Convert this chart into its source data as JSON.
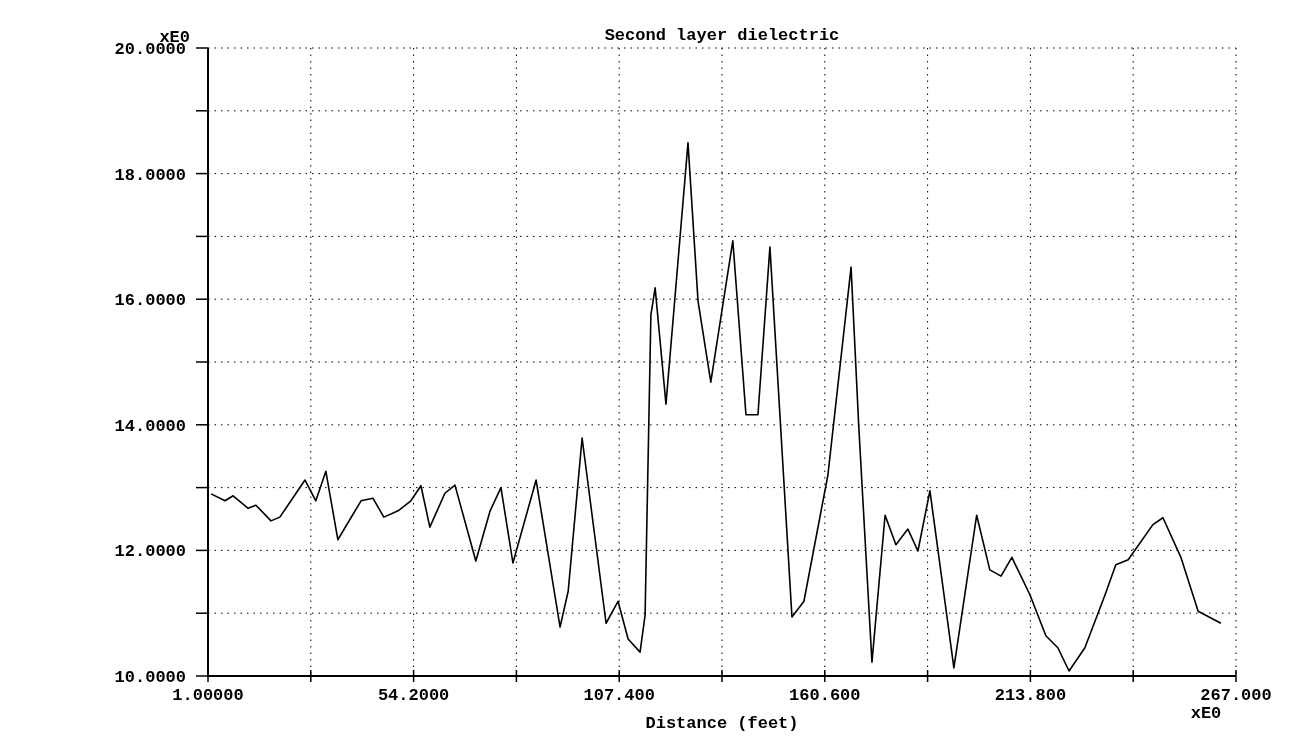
{
  "chart_data": {
    "type": "line",
    "title": "Second layer dielectric",
    "xlabel": "Distance (feet)",
    "annotations": [
      "xE0",
      "xE0"
    ],
    "x": [
      1.8,
      5.4,
      7.5,
      11.4,
      13.4,
      17.3,
      19.6,
      26.1,
      28.9,
      31.5,
      34.6,
      40.6,
      43.7,
      46.5,
      50.2,
      53.5,
      56.1,
      58.4,
      62.3,
      64.9,
      70.3,
      74.0,
      76.8,
      79.9,
      85.9,
      92.1,
      94.2,
      97.8,
      104.0,
      107.1,
      109.7,
      112.8,
      114.1,
      115.6,
      116.7,
      119.5,
      125.2,
      127.8,
      131.1,
      136.8,
      140.2,
      143.3,
      146.4,
      152.1,
      155.2,
      161.4,
      167.4,
      169.4,
      172.8,
      176.2,
      179.0,
      182.1,
      184.7,
      187.8,
      194.0,
      199.9,
      203.3,
      206.2,
      209.0,
      213.7,
      217.8,
      220.9,
      223.8,
      227.9,
      233.1,
      235.9,
      239.1,
      245.5,
      248.1,
      252.8,
      257.2,
      263.1
    ],
    "series": [
      {
        "color": "#000000",
        "values": [
          12.9,
          12.79,
          12.87,
          12.67,
          12.72,
          12.47,
          12.53,
          13.12,
          12.79,
          13.26,
          12.17,
          12.79,
          12.83,
          12.53,
          12.63,
          12.79,
          13.03,
          12.37,
          12.91,
          13.04,
          11.83,
          12.63,
          13.0,
          11.8,
          13.12,
          10.78,
          11.35,
          13.79,
          10.84,
          11.19,
          10.59,
          10.38,
          10.97,
          15.75,
          16.18,
          14.33,
          18.49,
          15.97,
          14.68,
          16.93,
          14.16,
          14.16,
          16.83,
          10.94,
          11.19,
          13.2,
          16.51,
          13.96,
          10.22,
          12.56,
          12.09,
          12.34,
          11.99,
          12.95,
          10.13,
          12.56,
          11.69,
          11.59,
          11.89,
          11.29,
          10.64,
          10.45,
          10.08,
          10.45,
          11.29,
          11.77,
          11.85,
          12.41,
          12.52,
          11.88,
          11.03,
          10.84
        ]
      }
    ],
    "xlim": [
      1,
      267
    ],
    "xticks": [
      {
        "value": 1,
        "label": "1.00000"
      },
      {
        "value": 27.6,
        "label": null
      },
      {
        "value": 54.2,
        "label": "54.2000"
      },
      {
        "value": 80.8,
        "label": null
      },
      {
        "value": 107.4,
        "label": "107.400"
      },
      {
        "value": 134,
        "label": null
      },
      {
        "value": 160.6,
        "label": "160.600"
      },
      {
        "value": 187.2,
        "label": null
      },
      {
        "value": 213.8,
        "label": "213.800"
      },
      {
        "value": 240.4,
        "label": null
      },
      {
        "value": 267,
        "label": "267.000"
      }
    ],
    "ylim": [
      10,
      20
    ],
    "yticks": [
      {
        "value": 10,
        "label": "10.0000"
      },
      {
        "value": 11,
        "label": null
      },
      {
        "value": 12,
        "label": "12.0000"
      },
      {
        "value": 13,
        "label": null
      },
      {
        "value": 14,
        "label": "14.0000"
      },
      {
        "value": 15,
        "label": null
      },
      {
        "value": 16,
        "label": "16.0000"
      },
      {
        "value": 17,
        "label": null
      },
      {
        "value": 18,
        "label": "18.0000"
      },
      {
        "value": 19,
        "label": null
      },
      {
        "value": 20,
        "label": "20.0000"
      }
    ],
    "grid": true,
    "line_style": "solid"
  }
}
